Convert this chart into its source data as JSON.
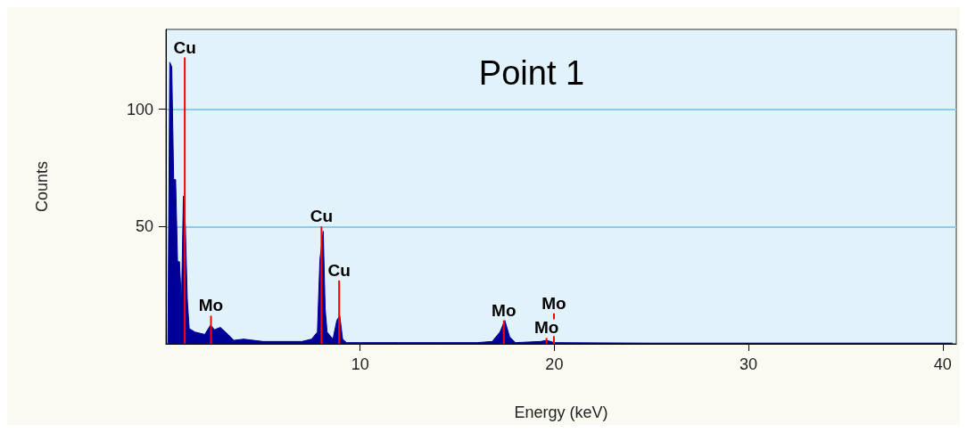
{
  "chart_data": {
    "type": "area",
    "title": "Point 1",
    "xlabel": "Energy (keV)",
    "ylabel": "Counts",
    "x": [
      0.1,
      0.2,
      0.3,
      0.4,
      0.5,
      0.6,
      0.7,
      0.8,
      0.9,
      1.0,
      1.1,
      1.2,
      1.5,
      2.0,
      2.3,
      2.5,
      2.8,
      3.2,
      3.5,
      4,
      5,
      6,
      7,
      7.5,
      7.8,
      7.93,
      8.1,
      8.2,
      8.3,
      8.6,
      8.8,
      8.95,
      9.1,
      9.3,
      10,
      12,
      14,
      16,
      16.8,
      17.2,
      17.45,
      17.7,
      18,
      19.3,
      19.6,
      20,
      25,
      30,
      35,
      40.5
    ],
    "series": [
      {
        "color": "#000099",
        "values": [
          0,
          120,
          118,
          70,
          70,
          35,
          35,
          17,
          63,
          50,
          19,
          6.5,
          5,
          4,
          8,
          6,
          7,
          4,
          1.5,
          2,
          1,
          1,
          1,
          2,
          5,
          36,
          48,
          15,
          5,
          2,
          10,
          12,
          2,
          0.5,
          0.5,
          0.5,
          0.5,
          0.5,
          1,
          5,
          10,
          3,
          0.5,
          1,
          1.5,
          0.5,
          0.3,
          0.3,
          0.3,
          0.3
        ]
      },
      {
        "type": "bar",
        "color": "#ff0000",
        "x": [
          0.97,
          2.32,
          8.01,
          8.92,
          17.4,
          19.6,
          19.98
        ],
        "values": [
          122,
          12,
          50,
          27,
          10,
          2.5,
          13
        ],
        "value_labels": [
          "Cu",
          "Mo",
          "Cu",
          "Cu",
          "Mo",
          "Mo",
          "Mo"
        ]
      }
    ],
    "xlim": [
      0,
      40.7
    ],
    "ylim": [
      0,
      134
    ],
    "xticks": [
      10,
      20,
      30,
      40
    ],
    "yticks": [
      50,
      100
    ],
    "grid": "y",
    "marker": "none"
  }
}
